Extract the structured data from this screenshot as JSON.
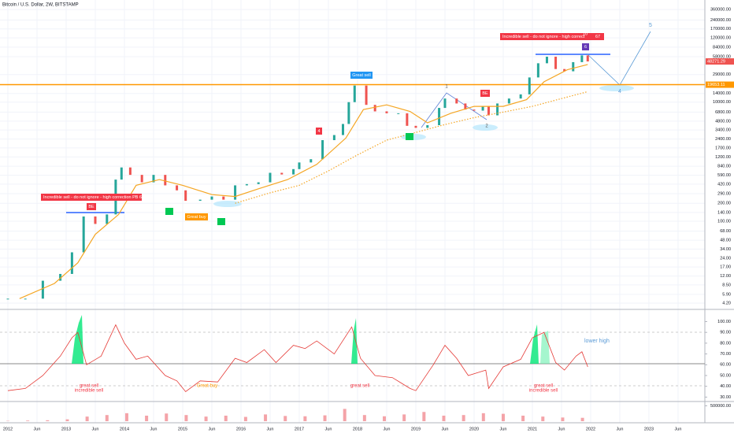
{
  "chart_data": [
    {
      "type": "candlestick",
      "title": "Bitcoin / U.S. Dollar, 2W, BITSTAMP",
      "log_scale": true,
      "grid": true,
      "up_color": "#26a69a",
      "down_color": "#ef5350",
      "xlim": [
        2011.865,
        2023.96
      ],
      "ylim": [
        3.4,
        520000
      ],
      "x": [
        2012.0,
        2012.3,
        2012.6,
        2012.9,
        2013.1,
        2013.3,
        2013.5,
        2013.7,
        2013.85,
        2013.95,
        2014.1,
        2014.3,
        2014.5,
        2014.7,
        2014.9,
        2015.05,
        2015.3,
        2015.5,
        2015.7,
        2015.9,
        2016.1,
        2016.3,
        2016.5,
        2016.7,
        2016.9,
        2017.0,
        2017.2,
        2017.4,
        2017.6,
        2017.75,
        2017.85,
        2017.95,
        2018.15,
        2018.3,
        2018.5,
        2018.7,
        2018.85,
        2019.0,
        2019.2,
        2019.4,
        2019.5,
        2019.7,
        2019.85,
        2020.0,
        2020.15,
        2020.25,
        2020.4,
        2020.6,
        2020.8,
        2020.95,
        2021.1,
        2021.25,
        2021.4,
        2021.55,
        2021.7,
        2021.85,
        2021.95
      ],
      "close": [
        5,
        5,
        10,
        13,
        30,
        120,
        90,
        130,
        500,
        800,
        600,
        450,
        600,
        400,
        330,
        220,
        230,
        260,
        230,
        400,
        420,
        450,
        650,
        610,
        750,
        970,
        1100,
        2300,
        2800,
        4300,
        10000,
        19000,
        9000,
        7000,
        6500,
        6500,
        4000,
        3700,
        4100,
        8000,
        11500,
        9500,
        7500,
        7200,
        8500,
        6000,
        9500,
        11500,
        13500,
        26000,
        45000,
        58000,
        36000,
        33000,
        47000,
        61000,
        48271
      ],
      "ma": {
        "color": "#f5a623",
        "x": [
          2012.2,
          2012.8,
          2013.2,
          2013.5,
          2013.9,
          2014.2,
          2014.6,
          2015.0,
          2015.5,
          2015.9,
          2016.3,
          2016.8,
          2017.3,
          2017.8,
          2018.1,
          2018.5,
          2018.9,
          2019.2,
          2019.6,
          2020.0,
          2020.5,
          2020.9,
          2021.2,
          2021.6,
          2021.95
        ],
        "values": [
          5,
          9,
          20,
          60,
          130,
          400,
          500,
          400,
          280,
          260,
          350,
          500,
          900,
          2500,
          7500,
          9000,
          7000,
          4500,
          6500,
          8500,
          8500,
          11000,
          22000,
          35000,
          43000
        ]
      },
      "ma_dotted": {
        "color": "#f5a623",
        "x": [
          2015.9,
          2016.5,
          2017.0,
          2017.5,
          2018.0,
          2018.5,
          2019.0,
          2019.5,
          2020.0,
          2020.5,
          2021.0,
          2021.5,
          2021.95
        ],
        "values": [
          200,
          300,
          400,
          700,
          1300,
          2300,
          3100,
          4200,
          5500,
          6800,
          8500,
          11500,
          15000
        ]
      },
      "last_price": {
        "value": 48271.29,
        "label": "48271.29"
      },
      "level": {
        "value": 19653.11,
        "label": "19653.11"
      },
      "xticks": [
        2012,
        {
          "value": 2012.5,
          "label": "Jun"
        },
        2013,
        {
          "value": 2013.5,
          "label": "Jun"
        },
        2014,
        {
          "value": 2014.5,
          "label": "Jun"
        },
        2015,
        {
          "value": 2015.5,
          "label": "Jun"
        },
        2016,
        {
          "value": 2016.5,
          "label": "Jun"
        },
        2017,
        {
          "value": 2017.5,
          "label": "Jun"
        },
        2018,
        {
          "value": 2018.5,
          "label": "Jun"
        },
        2019,
        {
          "value": 2019.5,
          "label": "Jun"
        },
        2020,
        {
          "value": 2020.5,
          "label": "Jun"
        },
        2021,
        {
          "value": 2021.5,
          "label": "Jun"
        },
        2022,
        {
          "value": 2022.5,
          "label": "Jun"
        },
        2023,
        {
          "value": 2023.5,
          "label": "Jun"
        }
      ],
      "yticks": [
        {
          "value": 360000,
          "label": "360000.00"
        },
        {
          "value": 240000,
          "label": "240000.00"
        },
        {
          "value": 170000,
          "label": "170000.00"
        },
        {
          "value": 120000,
          "label": "120000.00"
        },
        {
          "value": 84000,
          "label": "84000.00"
        },
        {
          "value": 58000,
          "label": "58000.00"
        },
        {
          "value": 29000,
          "label": "29000.00"
        },
        {
          "value": 14000,
          "label": "14000.00"
        },
        {
          "value": 10000,
          "label": "10000.00"
        },
        {
          "value": 6800,
          "label": "6800.00"
        },
        {
          "value": 4800,
          "label": "4800.00"
        },
        {
          "value": 3400,
          "label": "3400.00"
        },
        {
          "value": 2400,
          "label": "2400.00"
        },
        {
          "value": 1700,
          "label": "1700.00"
        },
        {
          "value": 1200,
          "label": "1200.00"
        },
        {
          "value": 840,
          "label": "840.00"
        },
        {
          "value": 590,
          "label": "590.00"
        },
        {
          "value": 420,
          "label": "420.00"
        },
        {
          "value": 290,
          "label": "290.00"
        },
        {
          "value": 200,
          "label": "200.00"
        },
        {
          "value": 140,
          "label": "140.00"
        },
        {
          "value": 100,
          "label": "100.00"
        },
        {
          "value": 68,
          "label": "68.00"
        },
        {
          "value": 48,
          "label": "48.00"
        },
        {
          "value": 34,
          "label": "34.00"
        },
        {
          "value": 24,
          "label": "24.00"
        },
        {
          "value": 17,
          "label": "17.00"
        },
        {
          "value": 12,
          "label": "12.00"
        },
        {
          "value": 8.5,
          "label": "8.50"
        },
        {
          "value": 5.9,
          "label": "5.90"
        },
        {
          "value": 4.2,
          "label": "4.20"
        }
      ],
      "annotations": {
        "sell_2013": "Incredible sell - do not ignore - high correction PB  66",
        "be_2013": "BE",
        "be_2020": "BE",
        "great_sell": "Great sell",
        "great_buy": "Great buy",
        "sell_2021": "Incredible sell - do not ignore - high correct",
        "n10": "10",
        "n67": "67",
        "n6": "6",
        "w1": "1",
        "w2": "2",
        "w4": "4",
        "w5": "5",
        "m4": "4"
      }
    },
    {
      "type": "line",
      "color": "#e53935",
      "ylim": [
        25.9,
        111.3
      ],
      "x": [
        2012.0,
        2012.3,
        2012.6,
        2012.9,
        2013.1,
        2013.2,
        2013.35,
        2013.6,
        2013.85,
        2014.0,
        2014.2,
        2014.4,
        2014.7,
        2014.9,
        2015.05,
        2015.3,
        2015.6,
        2015.9,
        2016.1,
        2016.4,
        2016.6,
        2016.9,
        2017.1,
        2017.3,
        2017.6,
        2017.9,
        2018.05,
        2018.3,
        2018.6,
        2018.9,
        2019.0,
        2019.3,
        2019.5,
        2019.7,
        2019.9,
        2020.2,
        2020.25,
        2020.5,
        2020.8,
        2021.0,
        2021.2,
        2021.4,
        2021.55,
        2021.75,
        2021.85,
        2021.95
      ],
      "values": [
        36,
        38,
        50,
        68,
        85,
        90,
        60,
        68,
        97,
        80,
        65,
        68,
        50,
        45,
        35,
        45,
        44,
        66,
        62,
        74,
        62,
        78,
        75,
        82,
        70,
        95,
        66,
        50,
        48,
        38,
        36,
        60,
        78,
        66,
        50,
        55,
        38,
        58,
        65,
        85,
        90,
        62,
        55,
        68,
        72,
        58
      ],
      "yticks": [
        {
          "value": 100,
          "label": "100.00"
        },
        {
          "value": 90,
          "label": "90.00"
        },
        {
          "value": 80,
          "label": "80.00"
        },
        {
          "value": 70,
          "label": "70.00"
        },
        {
          "value": 60,
          "label": "60.00"
        },
        {
          "value": 50,
          "label": "50.00"
        },
        {
          "value": 40,
          "label": "40.00"
        },
        {
          "value": 30,
          "label": "30.00"
        }
      ],
      "annotations": {
        "lower_high": "lower high",
        "gs_2013": "great sell",
        "is_2013": "incredible sell",
        "gb_2015": "Great buy",
        "gs_2018": "great sell",
        "gs_2021": "great sell",
        "is_2021": "incredible sell"
      }
    },
    {
      "type": "bar",
      "color": "#f4a3a8",
      "ylim": [
        0,
        640000
      ],
      "x": [
        2012.0,
        2012.34,
        2012.68,
        2013.02,
        2013.36,
        2013.7,
        2014.04,
        2014.38,
        2014.72,
        2015.06,
        2015.4,
        2015.74,
        2016.08,
        2016.42,
        2016.76,
        2017.1,
        2017.44,
        2017.78,
        2018.12,
        2018.46,
        2018.8,
        2019.14,
        2019.48,
        2019.82,
        2020.16,
        2020.5,
        2020.84,
        2021.18,
        2021.52,
        2021.86
      ],
      "values": [
        10000,
        20000,
        30000,
        60000,
        150000,
        200000,
        260000,
        180000,
        250000,
        200000,
        150000,
        180000,
        140000,
        220000,
        170000,
        160000,
        190000,
        400000,
        200000,
        160000,
        220000,
        300000,
        180000,
        200000,
        260000,
        240000,
        180000,
        150000,
        120000,
        110000
      ],
      "yticks": [
        {
          "value": 500000,
          "label": "500000.00"
        }
      ]
    }
  ]
}
